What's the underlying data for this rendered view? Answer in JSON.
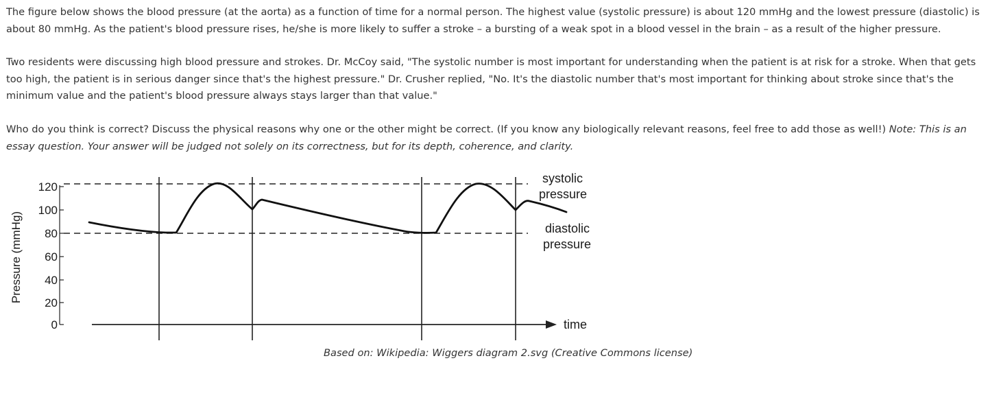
{
  "paragraphs": {
    "p1": "The figure below shows the blood pressure (at the aorta) as a function of time for a normal person. The highest value (systolic pressure) is about 120 mmHg and the lowest pressure (diastolic) is about 80 mmHg. As the patient's blood pressure rises, he/she is more likely to suffer a stroke – a bursting of a weak spot in a blood vessel in the brain – as a result of the higher pressure.",
    "p2": "Two residents were discussing high blood pressure and strokes. Dr. McCoy said, \"The systolic number is most important for understanding when the patient is at risk for a stroke. When that gets too high, the patient is in serious danger since that's the highest pressure.\" Dr. Crusher replied, \"No. It's the diastolic number that's most important for thinking about stroke since that's the minimum value and the patient's blood pressure always stays larger than that value.\"",
    "p3_main": "Who do you think is correct? Discuss the physical reasons why one or the other might be correct. (If you know any biologically relevant reasons, feel free to add those as well!) ",
    "p3_note": "Note: This is an essay question. Your answer will be judged not solely on its correctness, but for its depth, coherence, and clarity."
  },
  "figure": {
    "ylabel": "Pressure (mmHg)",
    "xlabel": "time",
    "yticks": [
      "120",
      "100",
      "80",
      "60",
      "40",
      "20",
      "0"
    ],
    "systolic_label_line1": "systolic",
    "systolic_label_line2": "pressure",
    "diastolic_label_line1": "diastolic",
    "diastolic_label_line2": "pressure",
    "caption": "Based on: Wikipedia: Wiggers diagram 2.svg (Creative Commons license)"
  }
}
